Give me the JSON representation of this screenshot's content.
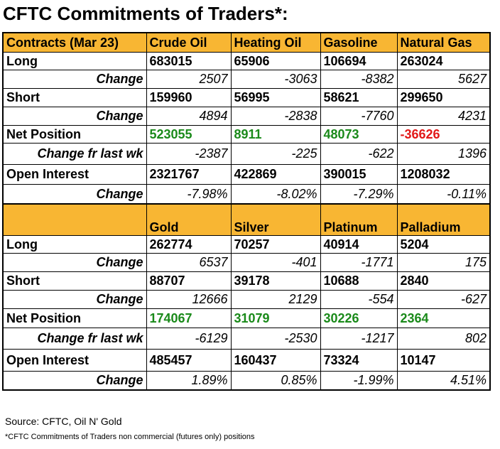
{
  "title": "CFTC Commitments of Traders*:",
  "colors": {
    "header_bg": "#f8b633",
    "positive": "#1a8a1a",
    "negative": "#e21818"
  },
  "section1": {
    "header": [
      "Contracts (Mar 23)",
      "Crude Oil",
      "Heating Oil",
      "Gasoline",
      "Natural Gas"
    ],
    "long": {
      "label": "Long",
      "values": [
        "683015",
        "65906",
        "106694",
        "263024"
      ]
    },
    "long_change": {
      "label": "Change",
      "values": [
        "2507",
        "-3063",
        "-8382",
        "5627"
      ]
    },
    "short": {
      "label": "Short",
      "values": [
        "159960",
        "56995",
        "58621",
        "299650"
      ]
    },
    "short_change": {
      "label": "Change",
      "values": [
        "4894",
        "-2838",
        "-7760",
        "4231"
      ]
    },
    "net": {
      "label": "Net Position",
      "values": [
        "523055",
        "8911",
        "48073",
        "-36626"
      ]
    },
    "net_change": {
      "label": "Change fr last wk",
      "values": [
        "-2387",
        "-225",
        "-622",
        "1396"
      ]
    },
    "oi": {
      "label": "Open Interest",
      "values": [
        "2321767",
        "422869",
        "390015",
        "1208032"
      ]
    },
    "oi_change": {
      "label": "Change",
      "values": [
        "-7.98%",
        "-8.02%",
        "-7.29%",
        "-0.11%"
      ]
    }
  },
  "section2": {
    "header": [
      "",
      "Gold",
      "Silver",
      "Platinum",
      "Palladium"
    ],
    "long": {
      "label": "Long",
      "values": [
        "262774",
        "70257",
        "40914",
        "5204"
      ]
    },
    "long_change": {
      "label": "Change",
      "values": [
        "6537",
        "-401",
        "-1771",
        "175"
      ]
    },
    "short": {
      "label": "Short",
      "values": [
        "88707",
        "39178",
        "10688",
        "2840"
      ]
    },
    "short_change": {
      "label": "Change",
      "values": [
        "12666",
        "2129",
        "-554",
        "-627"
      ]
    },
    "net": {
      "label": "Net Position",
      "values": [
        "174067",
        "31079",
        "30226",
        "2364"
      ]
    },
    "net_change": {
      "label": "Change fr last wk",
      "values": [
        "-6129",
        "-2530",
        "-1217",
        "802"
      ]
    },
    "oi": {
      "label": "Open Interest",
      "values": [
        "485457",
        "160437",
        "73324",
        "10147"
      ]
    },
    "oi_change": {
      "label": "Change",
      "values": [
        "1.89%",
        "0.85%",
        "-1.99%",
        "4.51%"
      ]
    }
  },
  "source": "Source: CFTC, Oil N' Gold",
  "footnote": "*CFTC Commitments of Traders non commercial (futures only) positions"
}
